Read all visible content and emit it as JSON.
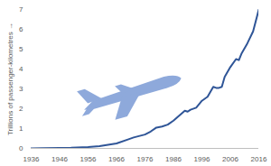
{
  "chart_data": {
    "type": "line",
    "y_label": "Trillions of passenger-kilometres",
    "x": [
      1936,
      1940,
      1946,
      1950,
      1956,
      1960,
      1966,
      1970,
      1972,
      1976,
      1978,
      1980,
      1982,
      1984,
      1986,
      1988,
      1990,
      1991,
      1992,
      1994,
      1996,
      1998,
      2000,
      2001,
      2002,
      2003,
      2004,
      2006,
      2008,
      2009,
      2010,
      2012,
      2014,
      2016
    ],
    "values": [
      0.0,
      0.01,
      0.02,
      0.03,
      0.07,
      0.11,
      0.25,
      0.45,
      0.55,
      0.7,
      0.85,
      1.05,
      1.1,
      1.2,
      1.4,
      1.65,
      1.9,
      1.85,
      1.95,
      2.05,
      2.4,
      2.6,
      3.1,
      3.05,
      3.05,
      3.1,
      3.6,
      4.1,
      4.5,
      4.45,
      4.8,
      5.3,
      5.9,
      7.0
    ],
    "color": "#2f5597",
    "xlim": [
      1936,
      2016
    ],
    "xticks": [
      1936,
      1946,
      1956,
      1966,
      1976,
      1986,
      1996,
      2006,
      2016
    ],
    "ylim": [
      0,
      7
    ],
    "yticks": [
      0,
      1,
      2,
      3,
      4,
      5,
      6,
      7
    ],
    "grid": false
  }
}
